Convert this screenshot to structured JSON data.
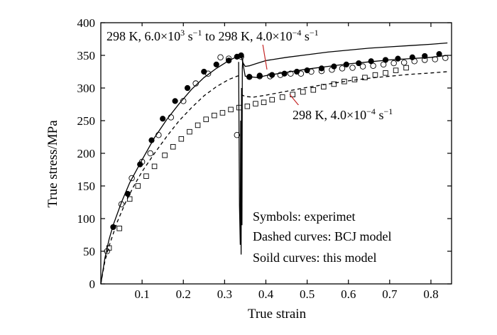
{
  "chart_data": {
    "type": "line",
    "xlabel": "True strain",
    "ylabel": "True stress/MPa",
    "xlim": [
      0,
      0.85
    ],
    "ylim": [
      0,
      400
    ],
    "xticks": [
      0.1,
      0.2,
      0.3,
      0.4,
      0.5,
      0.6,
      0.7,
      0.8
    ],
    "xtick_labels": [
      "0.1",
      "0.2",
      "0.3",
      "0.4",
      "0.5",
      "0.6",
      "0.7",
      "0.8"
    ],
    "yticks": [
      0,
      50,
      100,
      150,
      200,
      250,
      300,
      350,
      400
    ],
    "ytick_labels": [
      "0",
      "50",
      "100",
      "150",
      "200",
      "250",
      "300",
      "350",
      "400"
    ],
    "grid": false,
    "annotations": {
      "upper": {
        "prefix": "298 K, 6.0×10",
        "sup1": "3",
        "mid1": " s",
        "sup2": "−1",
        "mid2": " to 298 K, 4.0×10",
        "sup3": "−4",
        "mid3": " s",
        "sup4": "−1"
      },
      "lower": {
        "prefix": "298 K, 4.0×10",
        "sup1": "−4",
        "mid1": " s",
        "sup2": "−1"
      },
      "notes": [
        "Symbols: experimet",
        "Dashed curves: BCJ model",
        "Soild curves: this model"
      ]
    },
    "series": [
      {
        "style": "solid",
        "x": [
          0.0,
          0.01,
          0.02,
          0.03,
          0.05,
          0.07,
          0.1,
          0.13,
          0.16,
          0.19,
          0.22,
          0.25,
          0.28,
          0.31,
          0.33,
          0.34,
          0.342,
          0.345,
          0.35,
          0.36,
          0.38,
          0.4,
          0.45,
          0.5,
          0.55,
          0.6,
          0.65,
          0.7,
          0.75,
          0.8,
          0.84
        ],
        "y": [
          0,
          40,
          68,
          90,
          125,
          155,
          190,
          224,
          252,
          276,
          298,
          316,
          330,
          342,
          348,
          350,
          345,
          338,
          333,
          334,
          338,
          342,
          347,
          351,
          355,
          358,
          361,
          363,
          365,
          367,
          369
        ]
      },
      {
        "style": "solid",
        "x": [
          0.342,
          0.35,
          0.38,
          0.4,
          0.45,
          0.5,
          0.55,
          0.6,
          0.65,
          0.7,
          0.75,
          0.8,
          0.84
        ],
        "y": [
          345,
          318,
          316,
          319,
          324,
          329,
          333,
          337,
          340,
          343,
          345,
          347,
          350
        ]
      },
      {
        "style": "solid",
        "x": [
          0.334,
          0.336,
          0.338,
          0.339,
          0.34,
          0.341,
          0.342,
          0.343,
          0.344
        ],
        "y": [
          340,
          120,
          60,
          250,
          45,
          300,
          90,
          330,
          345
        ]
      },
      {
        "style": "dashed",
        "x": [
          0.0,
          0.01,
          0.02,
          0.04,
          0.06,
          0.08,
          0.1,
          0.13,
          0.16,
          0.19,
          0.22,
          0.25,
          0.28,
          0.31,
          0.33,
          0.34
        ],
        "y": [
          0,
          35,
          58,
          95,
          125,
          150,
          172,
          200,
          226,
          250,
          270,
          288,
          302,
          313,
          318,
          320
        ]
      },
      {
        "style": "dashed",
        "x": [
          0.34,
          0.35,
          0.37,
          0.4,
          0.45,
          0.5,
          0.55,
          0.6,
          0.65,
          0.7,
          0.75,
          0.8,
          0.84
        ],
        "y": [
          290,
          287,
          286,
          289,
          295,
          301,
          306,
          311,
          315,
          318,
          321,
          323,
          325
        ]
      },
      {
        "marker": "filled-circle",
        "x": [
          0.03,
          0.065,
          0.095,
          0.123,
          0.15,
          0.18,
          0.21,
          0.25,
          0.28,
          0.31,
          0.33,
          0.34,
          0.36,
          0.385,
          0.415,
          0.445,
          0.475,
          0.5,
          0.535,
          0.565,
          0.595,
          0.625,
          0.655,
          0.69,
          0.72,
          0.755,
          0.785,
          0.82
        ],
        "y": [
          87,
          138,
          183,
          220,
          253,
          280,
          300,
          325,
          336,
          342,
          348,
          350,
          317,
          319,
          320,
          322,
          325,
          327,
          330,
          333,
          336,
          338,
          341,
          343,
          345,
          347,
          349,
          352
        ]
      },
      {
        "marker": "open-circle",
        "x": [
          0.015,
          0.05,
          0.075,
          0.1,
          0.12,
          0.14,
          0.17,
          0.2,
          0.23,
          0.26,
          0.29,
          0.31,
          0.33,
          0.34,
          0.36,
          0.385,
          0.41,
          0.435,
          0.46,
          0.485,
          0.51,
          0.535,
          0.56,
          0.585,
          0.61,
          0.635,
          0.66,
          0.685,
          0.71,
          0.735,
          0.76,
          0.785,
          0.81,
          0.835
        ],
        "y": [
          50,
          122,
          162,
          187,
          200,
          228,
          255,
          280,
          307,
          322,
          347,
          345,
          228,
          348,
          317,
          318,
          318,
          320,
          322,
          322,
          325,
          326,
          328,
          330,
          331,
          333,
          334,
          336,
          338,
          339,
          341,
          343,
          344,
          346
        ]
      },
      {
        "marker": "open-square",
        "x": [
          0.02,
          0.045,
          0.07,
          0.09,
          0.11,
          0.13,
          0.155,
          0.175,
          0.195,
          0.215,
          0.235,
          0.255,
          0.275,
          0.295,
          0.315,
          0.335,
          0.355,
          0.375,
          0.395,
          0.415,
          0.44,
          0.465,
          0.49,
          0.515,
          0.54,
          0.565,
          0.59,
          0.615,
          0.64,
          0.665,
          0.69,
          0.715,
          0.74
        ],
        "y": [
          55,
          85,
          130,
          150,
          165,
          180,
          197,
          210,
          222,
          233,
          243,
          252,
          258,
          262,
          267,
          270,
          272,
          276,
          278,
          282,
          286,
          290,
          294,
          297,
          302,
          306,
          310,
          313,
          316,
          320,
          323,
          327,
          331
        ]
      }
    ]
  }
}
